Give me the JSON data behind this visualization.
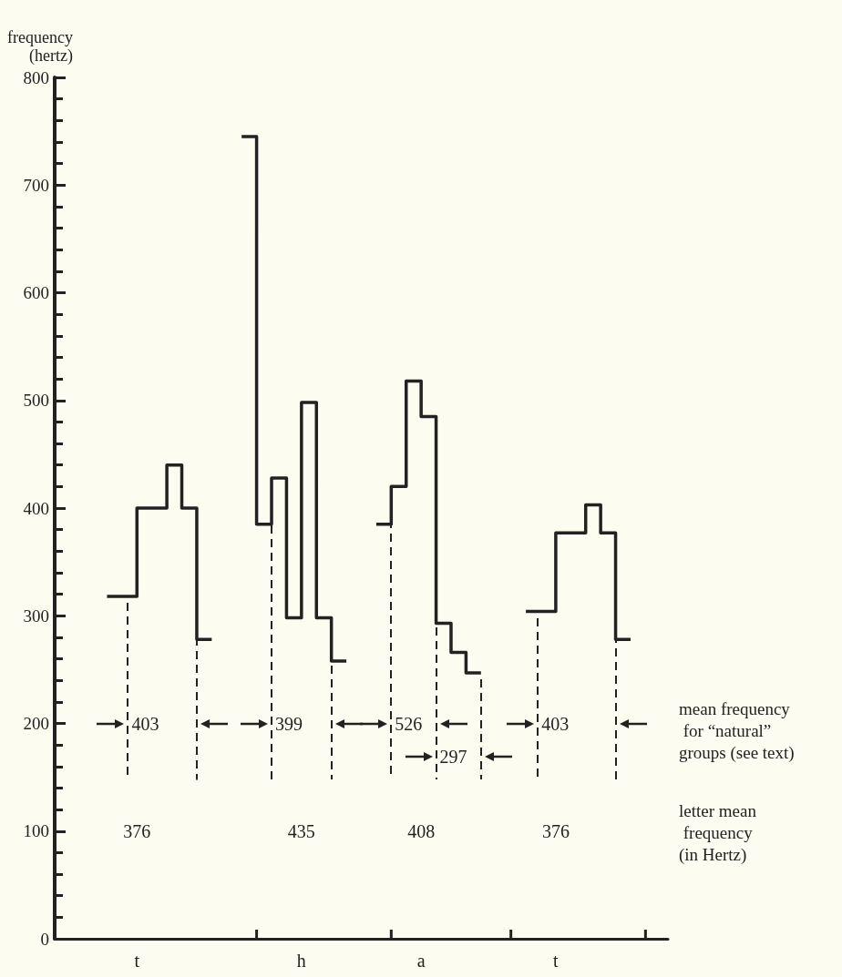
{
  "chart_data": {
    "type": "step",
    "ylabel": "frequency\n(hertz)",
    "categories": [
      null,
      null,
      null,
      null,
      null,
      "t",
      null,
      null,
      null,
      null,
      null,
      null,
      null,
      null,
      null,
      null,
      "h",
      null,
      null,
      null,
      null,
      null,
      null,
      null,
      "a",
      null,
      null,
      null,
      null,
      null,
      null,
      null,
      null,
      "t",
      null,
      null,
      null,
      null,
      null,
      null,
      null
    ],
    "values": [
      null,
      null,
      null,
      318,
      318,
      400,
      400,
      440,
      400,
      278,
      278,
      null,
      745,
      385,
      428,
      298,
      498,
      298,
      258,
      258,
      null,
      385,
      420,
      518,
      485,
      293,
      266,
      247,
      247,
      null,
      null,
      304,
      304,
      377,
      377,
      403,
      377,
      278,
      278,
      null,
      null
    ],
    "color": "#222222",
    "marker": "none",
    "ylim": [
      0,
      800
    ],
    "yticks": [
      0,
      100,
      200,
      300,
      400,
      500,
      600,
      700,
      800
    ],
    "annotations": [
      "403",
      "399",
      "526",
      "297",
      "403",
      "376",
      "435",
      "408",
      "376",
      "mean frequency\n for “natural”\ngroups (see text)",
      "letter mean\n frequency\n(in Hertz)"
    ]
  }
}
